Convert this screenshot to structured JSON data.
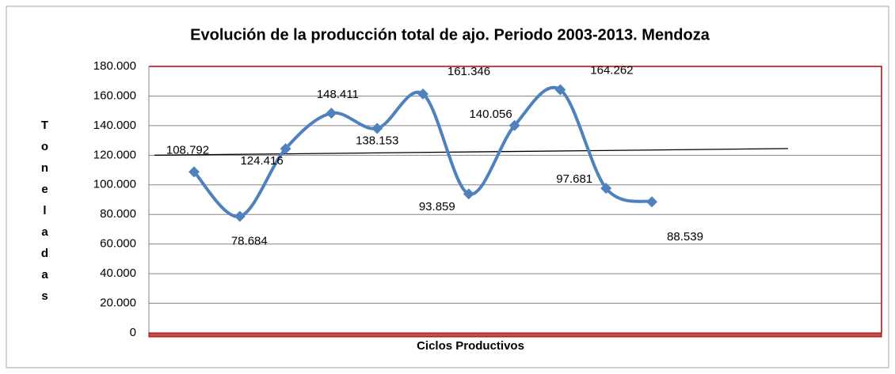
{
  "chart_data": {
    "type": "line",
    "title": "Evolución de la producción total de ajo. Periodo 2003-2013. Mendoza",
    "x_label": "Ciclos Productivos",
    "y_label": "Toneladas",
    "series": [
      {
        "color": "#4f81bd",
        "values": [
          108792,
          78684,
          124416,
          148411,
          138153,
          161346,
          93859,
          140056,
          164262,
          97681,
          88539
        ],
        "value_labels": [
          "108.792",
          "78.684",
          "124.416",
          "148.411",
          "138.153",
          "161.346",
          "93.859",
          "140.056",
          "164.262",
          "97.681",
          "88.539"
        ]
      }
    ],
    "trendline": {
      "color": "#000000",
      "values": [
        120000,
        124500
      ]
    },
    "ylim": [
      0,
      180000
    ],
    "yticks": [
      0,
      {
        "value": 20000,
        "label": "20.000"
      },
      {
        "value": 40000,
        "label": "40.000"
      },
      {
        "value": 60000,
        "label": "60.000"
      },
      {
        "value": 80000,
        "label": "80.000"
      },
      {
        "value": 100000,
        "label": "100.000"
      },
      {
        "value": 120000,
        "label": "120.000"
      },
      {
        "value": 140000,
        "label": "140.000"
      },
      {
        "value": 160000,
        "label": "160.000"
      },
      {
        "value": 180000,
        "label": "180.000"
      }
    ],
    "grid": true
  }
}
